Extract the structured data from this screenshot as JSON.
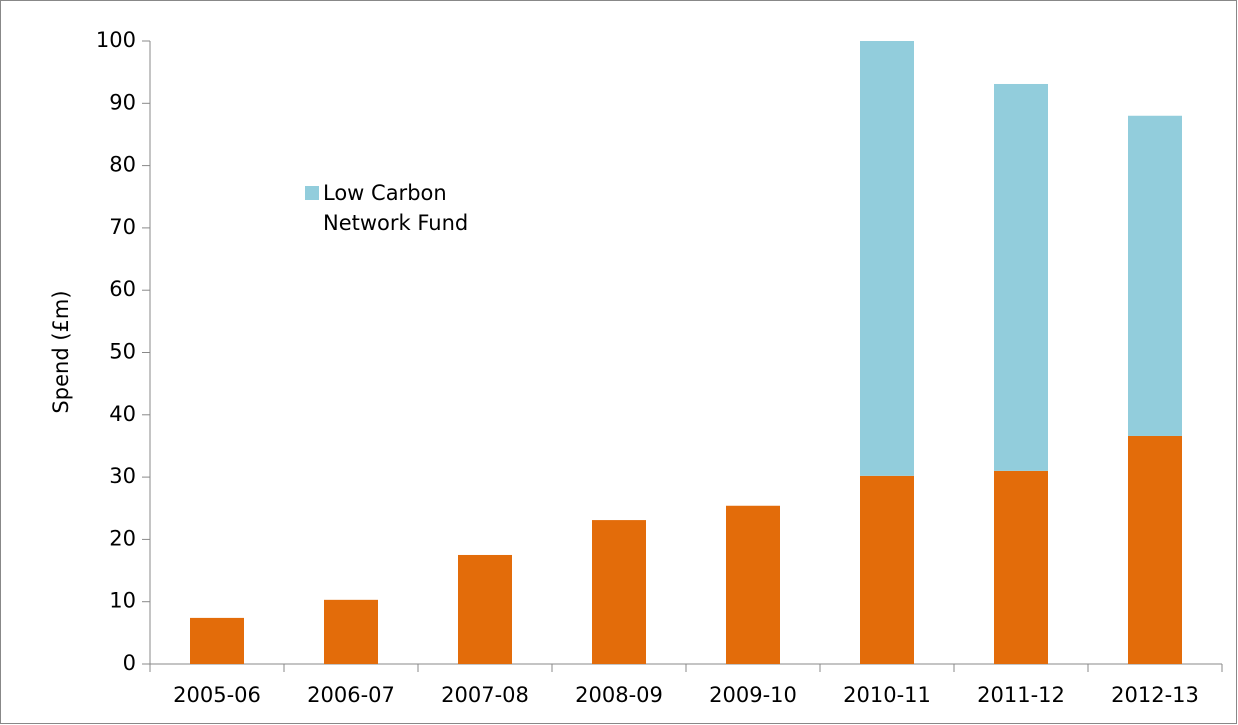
{
  "chart_data": {
    "type": "stacked_bar",
    "y_label": "Spend (£m)",
    "categories": [
      "2005-06",
      "2006-07",
      "2007-08",
      "2008-09",
      "2009-10",
      "2010-11",
      "2011-12",
      "2012-13"
    ],
    "series": [
      {
        "color": "#e36c0a",
        "values": [
          7.4,
          10.3,
          17.5,
          23.1,
          25.4,
          30.2,
          31.0,
          36.6
        ]
      },
      {
        "name": "Low Carbon Network Fund",
        "color": "#92cddc",
        "values": [
          null,
          null,
          null,
          null,
          null,
          69.8,
          62.1,
          51.4
        ]
      }
    ],
    "ylim": [
      0,
      100
    ],
    "yticks": [
      0,
      10,
      20,
      30,
      40,
      50,
      60,
      70,
      80,
      90,
      100
    ],
    "grid": false,
    "legend": "upper-left"
  }
}
